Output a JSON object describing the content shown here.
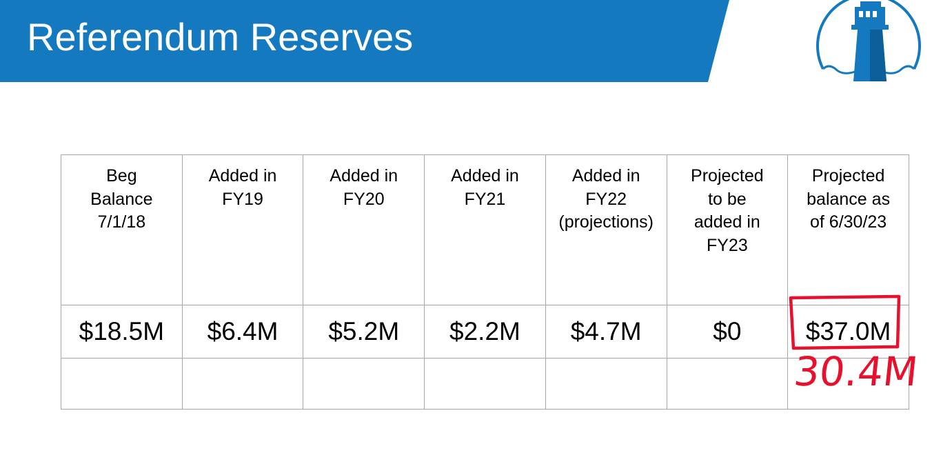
{
  "slide": {
    "title": "Referendum Reserves",
    "banner_color": "#1479bf",
    "logo_icon": "lighthouse-icon",
    "logo_color": "#1479bf"
  },
  "table": {
    "border_color": "#a6a6a6",
    "columns": [
      {
        "header": "Beg\nBalance\n7/1/18",
        "value": "$18.5M"
      },
      {
        "header": "Added in\nFY19",
        "value": "$6.4M"
      },
      {
        "header": "Added in\nFY20",
        "value": "$5.2M"
      },
      {
        "header": "Added in\nFY21",
        "value": "$2.2M"
      },
      {
        "header": "Added in\nFY22\n(projections)",
        "value": "$4.7M"
      },
      {
        "header": "Projected\nto be\nadded in\nFY23",
        "value": "$0"
      },
      {
        "header": "Projected\nbalance as\nof 6/30/23",
        "value": "$37.0M"
      }
    ]
  },
  "annotation": {
    "handwritten_value": "30.4M",
    "ink_color": "#e8112d"
  }
}
